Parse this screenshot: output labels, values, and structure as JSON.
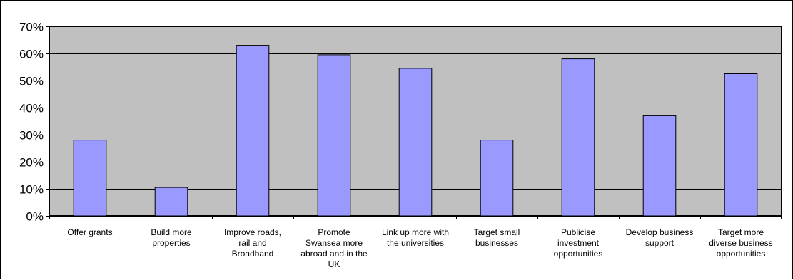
{
  "chart_data": {
    "type": "bar",
    "categories": [
      "Offer grants",
      "Build more properties",
      "Improve roads, rail and Broadband",
      "Promote Swansea more abroad and in the UK",
      "Link up more with the universities",
      "Target small businesses",
      "Publicise investment opportunities",
      "Develop business support",
      "Target more diverse business opportunities"
    ],
    "category_lines": [
      [
        "Offer grants"
      ],
      [
        "Build more",
        "properties"
      ],
      [
        "Improve roads,",
        "rail and",
        "Broadband"
      ],
      [
        "Promote",
        "Swansea more",
        "abroad and in the",
        "UK"
      ],
      [
        "Link up more with",
        "the universities"
      ],
      [
        "Target small",
        "businesses"
      ],
      [
        "Publicise",
        "investment",
        "opportunities"
      ],
      [
        "Develop business",
        "support"
      ],
      [
        "Target more",
        "diverse business",
        "opportunities"
      ]
    ],
    "values": [
      28,
      10.5,
      63,
      59.5,
      54.5,
      28,
      58,
      37,
      52.5
    ],
    "y_ticks": [
      "0%",
      "10%",
      "20%",
      "30%",
      "40%",
      "50%",
      "60%",
      "70%"
    ],
    "ylim": [
      0,
      70
    ],
    "grid": true,
    "legend": "none",
    "colors": {
      "plot_background": "#c0c0c0",
      "bar_fill": "#9999ff",
      "bar_stroke": "#000000",
      "gridline": "#000000"
    }
  }
}
